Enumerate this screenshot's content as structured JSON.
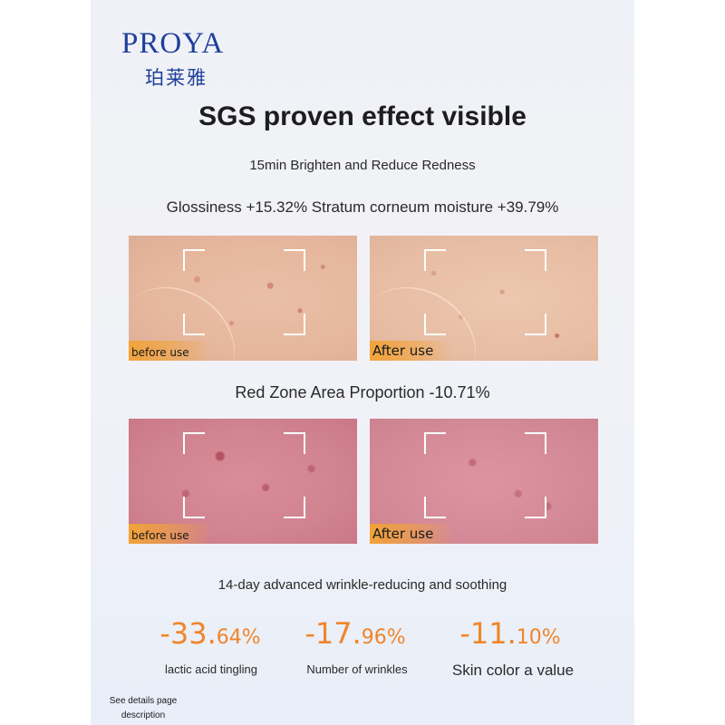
{
  "brand": {
    "name_en": "PROYA",
    "name_cn": "珀莱雅",
    "color": "#1f3f9a"
  },
  "headline": "SGS proven effect visible",
  "subtitle_1": "15min Brighten and Reduce Redness",
  "subtitle_2": "Glossiness +15.32% Stratum corneum moisture +39.79%",
  "comparison_1": {
    "before_label": "before use",
    "after_label": "After use"
  },
  "subtitle_3": "Red Zone Area Proportion -10.71%",
  "comparison_2": {
    "before_label": "before use",
    "after_label": "After use"
  },
  "subtitle_4": "14-day advanced wrinkle-reducing and soothing",
  "stats": [
    {
      "main": "-33.",
      "decimal": "64%",
      "label": "lactic acid tingling"
    },
    {
      "main": "-17.",
      "decimal": "96%",
      "label": "Number of wrinkles"
    },
    {
      "main": "-11.",
      "decimal": "10%",
      "label": "Skin color a value"
    }
  ],
  "footnote": "See details page description",
  "accent_color": "#f0852a"
}
